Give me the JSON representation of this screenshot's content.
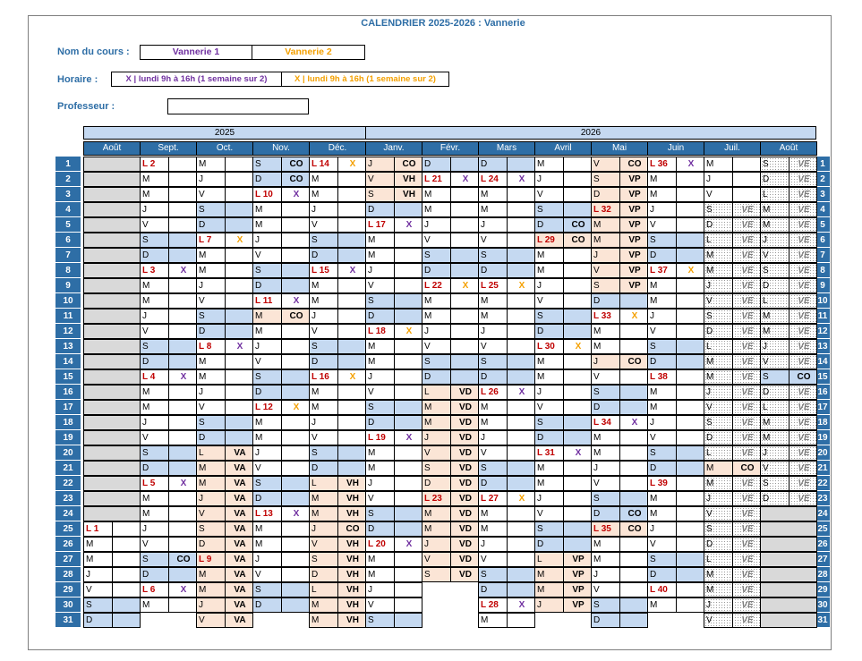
{
  "title": "CALENDRIER 2025-2026 : Vannerie",
  "labels": {
    "course": "Nom du cours :",
    "schedule": "Horaire :",
    "teacher": "Professeur :"
  },
  "courses": [
    {
      "name": "Vannerie 1",
      "color": "#7030a0",
      "schedule": "X |  lundi  9h à 16h (1 semaine sur 2)"
    },
    {
      "name": "Vannerie 2",
      "color": "#f4a000",
      "schedule": "X |  lundi  9h à 16h (1 semaine sur 2)"
    }
  ],
  "teacher": "",
  "years": [
    "2025",
    "2026"
  ],
  "months": [
    "Août",
    "Sept.",
    "Oct.",
    "Nov.",
    "Déc.",
    "Janv.",
    "Févr.",
    "Mars",
    "Avril",
    "Mai",
    "Juin",
    "Juil.",
    "Août"
  ],
  "days": [
    "1",
    "2",
    "3",
    "4",
    "5",
    "6",
    "7",
    "8",
    "9",
    "10",
    "11",
    "12",
    "13",
    "14",
    "15",
    "16",
    "17",
    "18",
    "19",
    "20",
    "21",
    "22",
    "23",
    "24",
    "25",
    "26",
    "27",
    "28",
    "29",
    "30",
    "31"
  ],
  "columns": [
    {
      "month": "Août",
      "cells": [
        "g",
        "g",
        "g",
        "g",
        "g",
        "g",
        "g",
        "g",
        "g",
        "g",
        "g",
        "g",
        "g",
        "g",
        "g",
        "g",
        "g",
        "g",
        "g",
        "g",
        "g",
        "g",
        "g",
        "g",
        "L 1|",
        "M|",
        "M|",
        "J|",
        "V|",
        "S|",
        "D|"
      ]
    },
    {
      "month": "Sept.",
      "cells": [
        "L 2|",
        "M|",
        "M|",
        "J|",
        "V|",
        "S|",
        "D|",
        "L 3|X",
        "M|",
        "M|",
        "J|",
        "V|",
        "S|",
        "D|",
        "L 4|X",
        "M|",
        "M|",
        "J|",
        "V|",
        "S|",
        "D|",
        "L 5|X",
        "M|",
        "M|",
        "J|",
        "V|",
        "S|CO",
        "D|",
        "L 6|X",
        "M|",
        ""
      ]
    },
    {
      "month": "Oct.",
      "cells": [
        "M|",
        "J|",
        "V|",
        "S|",
        "D|",
        "L 7|X",
        "M|",
        "M|",
        "J|",
        "V|",
        "S|",
        "D|",
        "L 8|X",
        "M|",
        "M|",
        "J|",
        "V|",
        "S|",
        "D|",
        "L|VA",
        "M|VA",
        "M|VA",
        "J|VA",
        "V|VA",
        "S|VA",
        "D|VA",
        "L 9|VA",
        "M|VA",
        "M|VA",
        "J|VA",
        "V|VA"
      ]
    },
    {
      "month": "Nov.",
      "cells": [
        "S|CO",
        "D|CO",
        "L 10|X",
        "M|",
        "M|",
        "J|",
        "V|",
        "S|",
        "D|",
        "L 11|X",
        "M|CO",
        "M|",
        "J|",
        "V|",
        "S|",
        "D|",
        "L 12|X",
        "M|",
        "M|",
        "J|",
        "V|",
        "S|",
        "D|",
        "L 13|X",
        "M|",
        "M|",
        "J|",
        "V|",
        "S|",
        "D|",
        ""
      ]
    },
    {
      "month": "Déc.",
      "cells": [
        "L 14|X",
        "M|",
        "M|",
        "J|",
        "V|",
        "S|",
        "D|",
        "L 15|X",
        "M|",
        "M|",
        "J|",
        "V|",
        "S|",
        "D|",
        "L 16|X",
        "M|",
        "M|",
        "J|",
        "V|",
        "S|",
        "D|",
        "L|VH",
        "M|VH",
        "M|VH",
        "J|CO",
        "V|VH",
        "S|VH",
        "D|VH",
        "L|VH",
        "M|VH",
        "M|VH"
      ]
    },
    {
      "month": "Janv.",
      "cells": [
        "J|CO",
        "V|VH",
        "S|VH",
        "D|",
        "L 17|X",
        "M|",
        "M|",
        "J|",
        "V|",
        "S|",
        "D|",
        "L 18|X",
        "M|",
        "M|",
        "J|",
        "V|",
        "S|",
        "D|",
        "L 19|X",
        "M|",
        "M|",
        "J|",
        "V|",
        "S|",
        "D|",
        "L 20|X",
        "M|",
        "M|",
        "J|",
        "V|",
        "S|"
      ]
    },
    {
      "month": "Févr.",
      "cells": [
        "D|",
        "L 21|X",
        "M|",
        "M|",
        "J|",
        "V|",
        "S|",
        "D|",
        "L 22|X",
        "M|",
        "M|",
        "J|",
        "V|",
        "S|",
        "D|",
        "L|VD",
        "M|VD",
        "M|VD",
        "J|VD",
        "V|VD",
        "S|VD",
        "D|VD",
        "L 23|VD",
        "M|VD",
        "M|VD",
        "J|VD",
        "V|VD",
        "S|VD",
        "",
        "",
        ""
      ]
    },
    {
      "month": "Mars",
      "cells": [
        "D|",
        "L 24|X",
        "M|",
        "M|",
        "J|",
        "V|",
        "S|",
        "D|",
        "L 25|X",
        "M|",
        "M|",
        "J|",
        "V|",
        "S|",
        "D|",
        "L 26|X",
        "M|",
        "M|",
        "J|",
        "V|",
        "S|",
        "D|",
        "L 27|X",
        "M|",
        "M|",
        "J|",
        "V|",
        "S|",
        "D|",
        "L 28|X",
        "M|"
      ]
    },
    {
      "month": "Avril",
      "cells": [
        "M|",
        "J|",
        "V|",
        "S|",
        "D|CO",
        "L 29|CO",
        "M|",
        "M|",
        "J|",
        "V|",
        "S|",
        "D|",
        "L 30|X",
        "M|",
        "M|",
        "J|",
        "V|",
        "S|",
        "D|",
        "L 31|X",
        "M|",
        "M|",
        "J|",
        "V|",
        "S|",
        "D|",
        "L|VP",
        "M|VP",
        "M|VP",
        "J|VP",
        ""
      ]
    },
    {
      "month": "Mai",
      "cells": [
        "V|CO",
        "S|VP",
        "D|VP",
        "L 32|VP",
        "M|VP",
        "M|VP",
        "J|VP",
        "V|VP",
        "S|VP",
        "D|",
        "L 33|X",
        "M|",
        "M|",
        "J|CO",
        "V|",
        "S|",
        "D|",
        "L 34|X",
        "M|",
        "M|",
        "J|",
        "V|",
        "S|",
        "D|CO",
        "L 35|CO",
        "M|",
        "M|",
        "J|",
        "V|",
        "S|",
        "D|"
      ]
    },
    {
      "month": "Juin",
      "cells": [
        "L 36|X",
        "M|",
        "M|",
        "J|",
        "V|",
        "S|",
        "D|",
        "L 37|X",
        "M|",
        "M|",
        "J|",
        "V|",
        "S|",
        "D|",
        "L 38|",
        "M|",
        "M|",
        "J|",
        "V|",
        "S|",
        "D|",
        "L 39|",
        "M|",
        "M|",
        "J|",
        "V|",
        "S|",
        "D|",
        "L 40|",
        "M|",
        ""
      ]
    },
    {
      "month": "Juil.",
      "cells": [
        "M|",
        "J|",
        "V|",
        "S|VE",
        "D|VE",
        "L|VE",
        "M|VE",
        "M|VE",
        "J|VE",
        "V|VE",
        "S|VE",
        "D|VE",
        "L|VE",
        "M|VE",
        "M|VE",
        "J|VE",
        "V|VE",
        "S|VE",
        "D|VE",
        "L|VE",
        "M|CO",
        "M|VE",
        "J|VE",
        "V|VE",
        "S|VE",
        "D|VE",
        "L|VE",
        "M|VE",
        "M|VE",
        "J|VE",
        "V|VE"
      ]
    },
    {
      "month": "Août",
      "cells": [
        "S|VE",
        "D|VE",
        "L|VE",
        "M|VE",
        "M|VE",
        "J|VE",
        "V|VE",
        "S|VE",
        "D|VE",
        "L|VE",
        "M|VE",
        "M|VE",
        "J|VE",
        "V|VE",
        "S|CO",
        "D|VE",
        "L|VE",
        "M|VE",
        "M|VE",
        "J|VE",
        "V|VE",
        "S|VE",
        "D|VE",
        "g",
        "g",
        "g",
        "g",
        "g",
        "g",
        "g",
        "g"
      ]
    }
  ]
}
